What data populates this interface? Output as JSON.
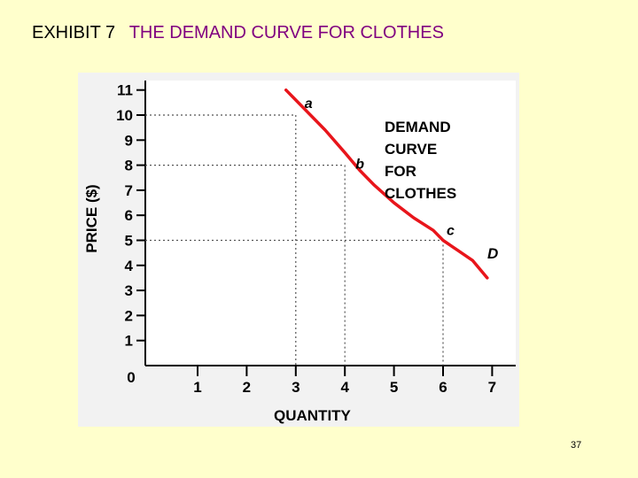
{
  "slide": {
    "exhibit_label": "EXHIBIT 7",
    "title": "THE DEMAND CURVE FOR CLOTHES",
    "page_number": "37"
  },
  "colors": {
    "background": "#ffffcc",
    "title_color": "#800080",
    "curve_color": "#e8151b",
    "frame_fill": "#f2f2f2"
  },
  "chart_data": {
    "type": "line",
    "ylabel": "PRICE ($)",
    "xlabel": "QUANTITY",
    "xlim": [
      0,
      7
    ],
    "ylim": [
      0,
      11
    ],
    "x_ticks": [
      1,
      2,
      3,
      4,
      5,
      6,
      7
    ],
    "y_ticks": [
      1,
      2,
      3,
      4,
      5,
      6,
      7,
      8,
      9,
      10,
      11
    ],
    "origin_label": "0",
    "series": [
      {
        "x": [
          2.8,
          3.0,
          3.3,
          3.6,
          4.0,
          4.3,
          4.6,
          5.0,
          5.4,
          5.8,
          6.0,
          6.3,
          6.6,
          6.9
        ],
        "y": [
          11.0,
          10.6,
          10.0,
          9.4,
          8.5,
          7.8,
          7.2,
          6.5,
          5.9,
          5.4,
          5.0,
          4.6,
          4.2,
          3.5
        ]
      }
    ],
    "points": [
      {
        "label": "a",
        "x": 3,
        "y": 10
      },
      {
        "label": "b",
        "x": 4,
        "y": 8
      },
      {
        "label": "c",
        "x": 6,
        "y": 5
      }
    ],
    "annotations": {
      "curve_label": [
        "DEMAND",
        "CURVE",
        "FOR",
        "CLOTHES"
      ],
      "end_label": "D"
    },
    "grid": "dotted guide lines from labeled points to axes",
    "legend": "none"
  }
}
